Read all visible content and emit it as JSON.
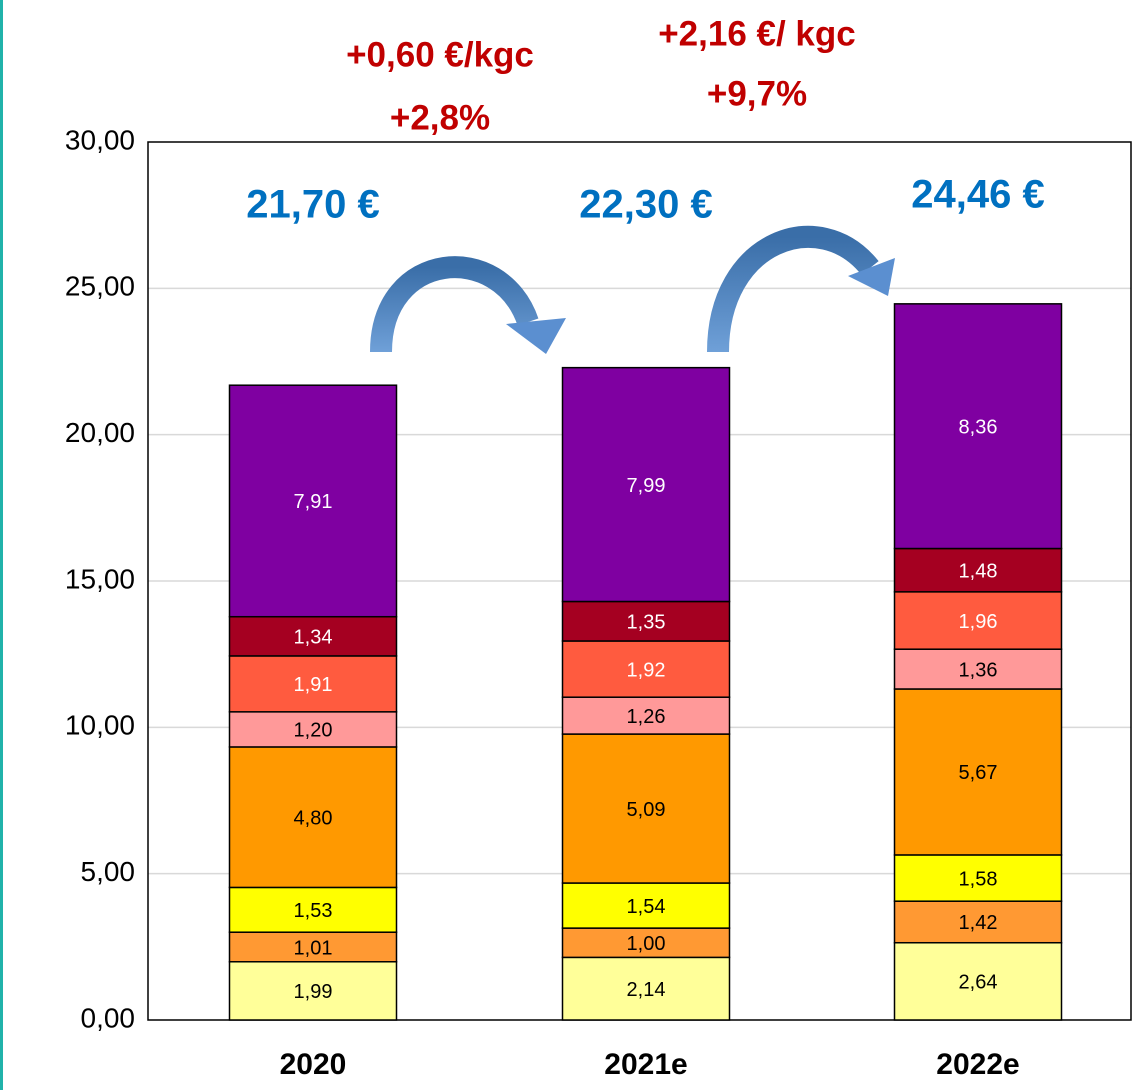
{
  "chart_data": {
    "type": "stacked_bar",
    "categories": [
      "2020",
      "2021e",
      "2022e"
    ],
    "series": [
      {
        "color": "#ffff99",
        "label_color": "#000000",
        "values": [
          1.99,
          2.14,
          2.64
        ],
        "value_labels": [
          "1,99",
          "2,14",
          "2,64"
        ]
      },
      {
        "color": "#ff9933",
        "label_color": "#000000",
        "values": [
          1.01,
          1.0,
          1.42
        ],
        "value_labels": [
          "1,01",
          "1,00",
          "1,42"
        ]
      },
      {
        "color": "#ffff00",
        "label_color": "#000000",
        "values": [
          1.53,
          1.54,
          1.58
        ],
        "value_labels": [
          "1,53",
          "1,54",
          "1,58"
        ]
      },
      {
        "color": "#ff9900",
        "label_color": "#000000",
        "values": [
          4.8,
          5.09,
          5.67
        ],
        "value_labels": [
          "4,80",
          "5,09",
          "5,67"
        ]
      },
      {
        "color": "#ff9999",
        "label_color": "#000000",
        "values": [
          1.2,
          1.26,
          1.36
        ],
        "value_labels": [
          "1,20",
          "1,26",
          "1,36"
        ]
      },
      {
        "color": "#ff5b3f",
        "label_color": "#ffffff",
        "values": [
          1.91,
          1.92,
          1.96
        ],
        "value_labels": [
          "1,91",
          "1,92",
          "1,96"
        ]
      },
      {
        "color": "#a50021",
        "label_color": "#ffffff",
        "values": [
          1.34,
          1.35,
          1.48
        ],
        "value_labels": [
          "1,34",
          "1,35",
          "1,48"
        ]
      },
      {
        "color": "#7f00a1",
        "label_color": "#ffffff",
        "values": [
          7.91,
          7.99,
          8.36
        ],
        "value_labels": [
          "7,91",
          "7,99",
          "8,36"
        ]
      }
    ],
    "totals": [
      "21,70 €",
      "22,30 €",
      "24,46 €"
    ],
    "annotations": [
      {
        "lines": [
          "+0,60 €/kgc",
          "+2,8%"
        ]
      },
      {
        "lines": [
          "+2,16 €/ kgc",
          "+9,7%"
        ]
      }
    ],
    "ylim": [
      0,
      30
    ],
    "yticks": [
      {
        "value": 0,
        "label": "0,00"
      },
      {
        "value": 5,
        "label": "5,00"
      },
      {
        "value": 10,
        "label": "10,00"
      },
      {
        "value": 15,
        "label": "15,00"
      },
      {
        "value": 20,
        "label": "20,00"
      },
      {
        "value": 25,
        "label": "25,00"
      },
      {
        "value": 30,
        "label": "30,00"
      }
    ],
    "grid": true
  }
}
